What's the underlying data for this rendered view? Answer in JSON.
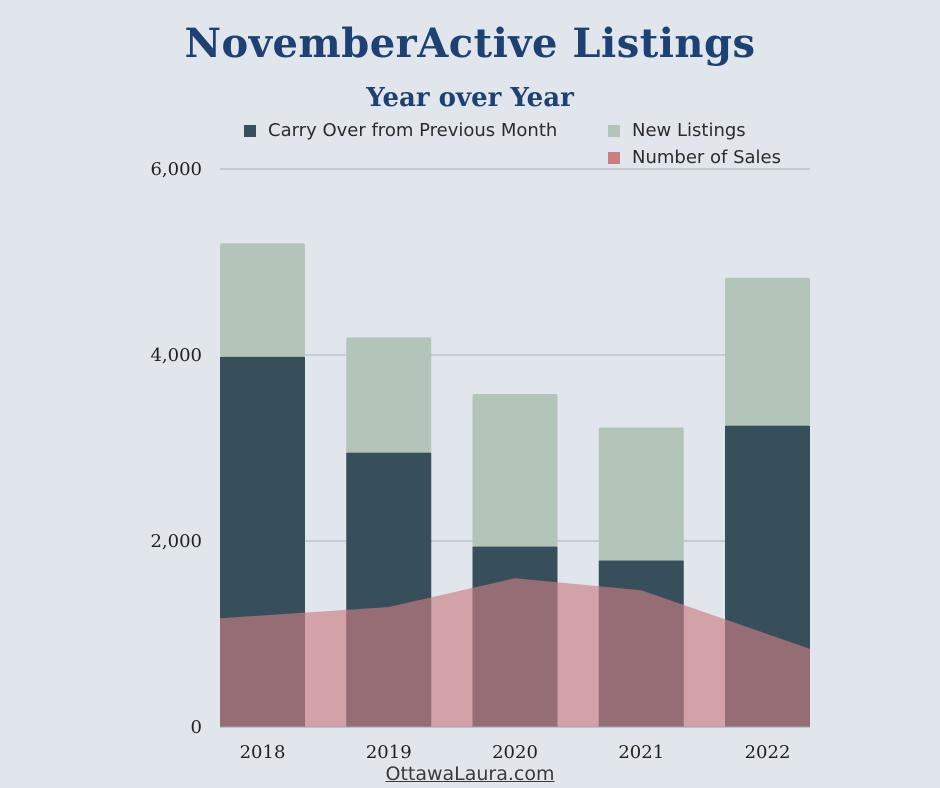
{
  "chart_data": {
    "type": "bar",
    "title": "NovemberActive Listings",
    "subtitle": "Year over Year",
    "categories": [
      "2018",
      "2019",
      "2020",
      "2021",
      "2022"
    ],
    "series": [
      {
        "name": "Carry Over from Previous Month",
        "kind": "stacked-bar",
        "color": "#374f5a",
        "values": [
          3980,
          2950,
          1940,
          1790,
          3240
        ]
      },
      {
        "name": "New Listings",
        "kind": "stacked-bar",
        "color": "#b3c4b8",
        "values": [
          1220,
          1240,
          1640,
          1430,
          1590
        ]
      },
      {
        "name": "Number of Sales",
        "kind": "area",
        "color": "#c97e82",
        "values": [
          1170,
          1290,
          1600,
          1470,
          840
        ]
      }
    ],
    "ylim": [
      0,
      6000
    ],
    "yticks": [
      "0",
      "2,000",
      "4,000",
      "6,000"
    ],
    "ytick_values": [
      0,
      2000,
      4000,
      6000
    ],
    "grid": true,
    "legend_position": "top"
  },
  "footer": "OttawaLaura.com"
}
